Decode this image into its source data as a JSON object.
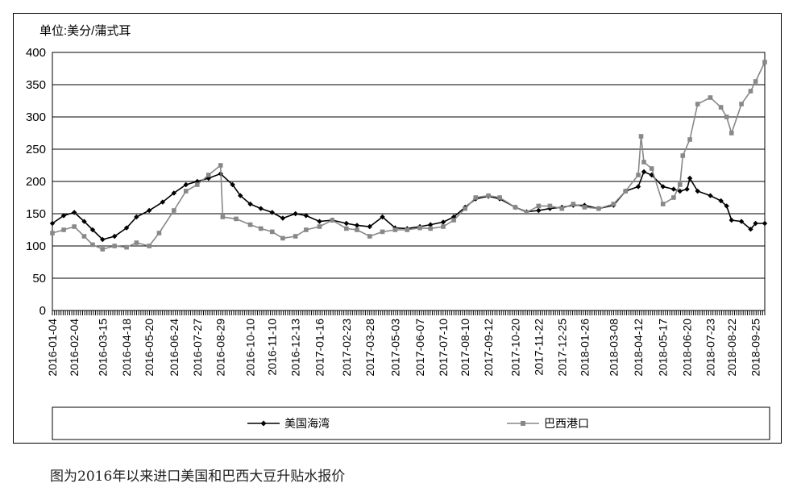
{
  "caption": "图为2016年以来进口美国和巴西大豆升贴水报价",
  "chart_data": {
    "type": "line",
    "unit_label": "单位:美分/蒲式耳",
    "ylim": [
      0,
      400
    ],
    "yticks": [
      0,
      50,
      100,
      150,
      200,
      250,
      300,
      350,
      400
    ],
    "grid": true,
    "legend_position": "bottom",
    "x_tick_labels": [
      "2016-01-04",
      "2016-02-04",
      "2016-03-15",
      "2016-04-18",
      "2016-05-20",
      "2016-06-24",
      "2016-07-27",
      "2016-08-29",
      "2016-10-10",
      "2016-11-10",
      "2016-12-13",
      "2017-01-16",
      "2017-02-23",
      "2017-03-28",
      "2017-05-03",
      "2017-06-07",
      "2017-07-10",
      "2017-08-10",
      "2017-09-12",
      "2017-10-20",
      "2017-11-22",
      "2017-12-25",
      "2018-01-26",
      "2018-03-08",
      "2018-04-12",
      "2018-05-17",
      "2018-06-20",
      "2018-07-23",
      "2018-08-22",
      "2018-09-25"
    ],
    "series": [
      {
        "name": "美国海湾",
        "color": "#000000",
        "marker": "diamond",
        "points": [
          [
            "2016-01-04",
            135
          ],
          [
            "2016-01-20",
            147
          ],
          [
            "2016-02-04",
            152
          ],
          [
            "2016-02-18",
            138
          ],
          [
            "2016-03-01",
            125
          ],
          [
            "2016-03-15",
            110
          ],
          [
            "2016-04-01",
            115
          ],
          [
            "2016-04-18",
            128
          ],
          [
            "2016-05-02",
            145
          ],
          [
            "2016-05-20",
            155
          ],
          [
            "2016-06-08",
            168
          ],
          [
            "2016-06-24",
            182
          ],
          [
            "2016-07-11",
            195
          ],
          [
            "2016-07-27",
            200
          ],
          [
            "2016-08-12",
            205
          ],
          [
            "2016-08-29",
            212
          ],
          [
            "2016-09-15",
            195
          ],
          [
            "2016-09-26",
            178
          ],
          [
            "2016-10-10",
            165
          ],
          [
            "2016-10-25",
            158
          ],
          [
            "2016-11-10",
            152
          ],
          [
            "2016-11-25",
            143
          ],
          [
            "2016-12-13",
            150
          ],
          [
            "2016-12-28",
            147
          ],
          [
            "2017-01-16",
            138
          ],
          [
            "2017-02-03",
            140
          ],
          [
            "2017-02-23",
            135
          ],
          [
            "2017-03-10",
            132
          ],
          [
            "2017-03-28",
            130
          ],
          [
            "2017-04-15",
            145
          ],
          [
            "2017-05-03",
            128
          ],
          [
            "2017-05-20",
            127
          ],
          [
            "2017-06-07",
            130
          ],
          [
            "2017-06-22",
            133
          ],
          [
            "2017-07-10",
            137
          ],
          [
            "2017-07-25",
            145
          ],
          [
            "2017-08-10",
            160
          ],
          [
            "2017-08-25",
            173
          ],
          [
            "2017-09-12",
            177
          ],
          [
            "2017-09-28",
            173
          ],
          [
            "2017-10-20",
            160
          ],
          [
            "2017-11-05",
            153
          ],
          [
            "2017-11-22",
            155
          ],
          [
            "2017-12-08",
            158
          ],
          [
            "2017-12-25",
            160
          ],
          [
            "2018-01-10",
            163
          ],
          [
            "2018-01-26",
            163
          ],
          [
            "2018-02-15",
            158
          ],
          [
            "2018-03-08",
            163
          ],
          [
            "2018-03-25",
            185
          ],
          [
            "2018-04-12",
            192
          ],
          [
            "2018-04-20",
            215
          ],
          [
            "2018-05-01",
            210
          ],
          [
            "2018-05-17",
            192
          ],
          [
            "2018-06-01",
            188
          ],
          [
            "2018-06-10",
            185
          ],
          [
            "2018-06-20",
            188
          ],
          [
            "2018-06-24",
            205
          ],
          [
            "2018-07-05",
            185
          ],
          [
            "2018-07-23",
            178
          ],
          [
            "2018-08-07",
            170
          ],
          [
            "2018-08-15",
            162
          ],
          [
            "2018-08-22",
            140
          ],
          [
            "2018-09-05",
            138
          ],
          [
            "2018-09-18",
            126
          ],
          [
            "2018-09-25",
            135
          ],
          [
            "2018-10-08",
            135
          ]
        ]
      },
      {
        "name": "巴西港口",
        "color": "#888888",
        "marker": "square",
        "points": [
          [
            "2016-01-04",
            120
          ],
          [
            "2016-01-20",
            125
          ],
          [
            "2016-02-04",
            130
          ],
          [
            "2016-02-18",
            115
          ],
          [
            "2016-03-01",
            102
          ],
          [
            "2016-03-15",
            95
          ],
          [
            "2016-04-01",
            100
          ],
          [
            "2016-04-18",
            98
          ],
          [
            "2016-05-02",
            105
          ],
          [
            "2016-05-20",
            100
          ],
          [
            "2016-06-03",
            120
          ],
          [
            "2016-06-24",
            155
          ],
          [
            "2016-07-11",
            185
          ],
          [
            "2016-07-27",
            195
          ],
          [
            "2016-08-12",
            210
          ],
          [
            "2016-08-29",
            225
          ],
          [
            "2016-09-01",
            145
          ],
          [
            "2016-09-20",
            142
          ],
          [
            "2016-10-10",
            133
          ],
          [
            "2016-10-25",
            127
          ],
          [
            "2016-11-10",
            122
          ],
          [
            "2016-11-25",
            112
          ],
          [
            "2016-12-13",
            115
          ],
          [
            "2016-12-28",
            125
          ],
          [
            "2017-01-16",
            130
          ],
          [
            "2017-02-03",
            140
          ],
          [
            "2017-02-23",
            127
          ],
          [
            "2017-03-10",
            125
          ],
          [
            "2017-03-28",
            115
          ],
          [
            "2017-04-15",
            122
          ],
          [
            "2017-05-03",
            125
          ],
          [
            "2017-05-20",
            125
          ],
          [
            "2017-06-07",
            128
          ],
          [
            "2017-06-22",
            127
          ],
          [
            "2017-07-10",
            130
          ],
          [
            "2017-07-25",
            140
          ],
          [
            "2017-08-10",
            158
          ],
          [
            "2017-08-25",
            175
          ],
          [
            "2017-09-12",
            178
          ],
          [
            "2017-09-28",
            175
          ],
          [
            "2017-10-20",
            160
          ],
          [
            "2017-11-05",
            152
          ],
          [
            "2017-11-22",
            162
          ],
          [
            "2017-12-08",
            162
          ],
          [
            "2017-12-25",
            158
          ],
          [
            "2018-01-10",
            165
          ],
          [
            "2018-01-26",
            160
          ],
          [
            "2018-02-15",
            158
          ],
          [
            "2018-03-08",
            165
          ],
          [
            "2018-03-25",
            185
          ],
          [
            "2018-04-12",
            210
          ],
          [
            "2018-04-16",
            270
          ],
          [
            "2018-04-20",
            230
          ],
          [
            "2018-05-01",
            220
          ],
          [
            "2018-05-17",
            165
          ],
          [
            "2018-06-01",
            175
          ],
          [
            "2018-06-10",
            195
          ],
          [
            "2018-06-14",
            240
          ],
          [
            "2018-06-24",
            265
          ],
          [
            "2018-07-05",
            320
          ],
          [
            "2018-07-23",
            330
          ],
          [
            "2018-08-07",
            315
          ],
          [
            "2018-08-15",
            300
          ],
          [
            "2018-08-22",
            275
          ],
          [
            "2018-09-05",
            320
          ],
          [
            "2018-09-18",
            340
          ],
          [
            "2018-09-25",
            355
          ],
          [
            "2018-10-08",
            385
          ]
        ]
      }
    ]
  }
}
